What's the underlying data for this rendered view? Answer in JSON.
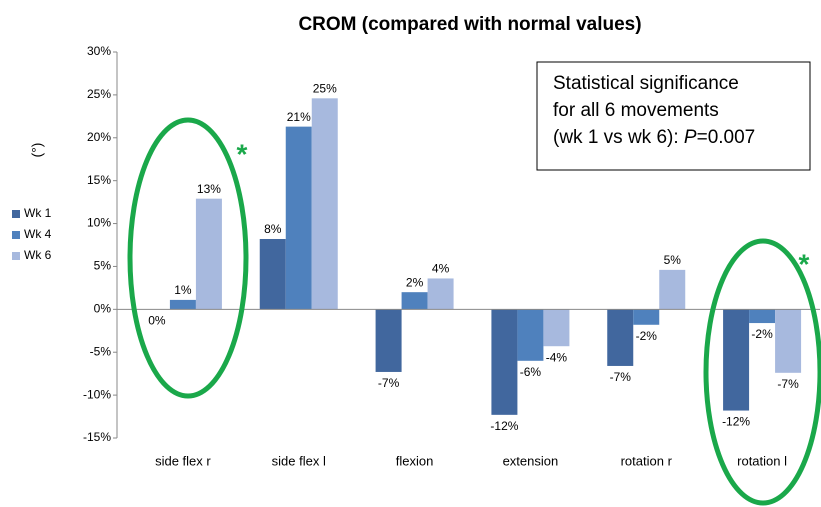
{
  "chart_data": {
    "type": "bar",
    "title": "CROM (compared with normal values)",
    "y_label": "(°)",
    "categories": [
      "side flex r",
      "side flex l",
      "flexion",
      "extension",
      "rotation r",
      "rotation l"
    ],
    "series": [
      {
        "name": "Wk 1",
        "color": "#41679e",
        "values": [
          0,
          8.2,
          -7.3,
          -12.3,
          -6.6,
          -11.8
        ],
        "value_labels": [
          "0%",
          "8%",
          "-7%",
          "-12%",
          "-7%",
          "-12%"
        ]
      },
      {
        "name": "Wk 4",
        "color": "#4f81bd",
        "values": [
          1.1,
          21.3,
          2.0,
          -6.0,
          -1.8,
          -1.6
        ],
        "value_labels": [
          "1%",
          "21%",
          "2%",
          "-6%",
          "-2%",
          "-2%"
        ]
      },
      {
        "name": "Wk 6",
        "color": "#a7b9de",
        "values": [
          12.9,
          24.6,
          3.6,
          -4.3,
          4.6,
          -7.4
        ],
        "value_labels": [
          "13%",
          "25%",
          "4%",
          "-4%",
          "5%",
          "-7%"
        ]
      }
    ],
    "ylim": [
      -15,
      30
    ],
    "yticks": [
      {
        "value": -15,
        "label": "-15%"
      },
      {
        "value": -10,
        "label": "-10%"
      },
      {
        "value": -5,
        "label": "-5%"
      },
      {
        "value": 0,
        "label": "0%"
      },
      {
        "value": 5,
        "label": "5%"
      },
      {
        "value": 10,
        "label": "10%"
      },
      {
        "value": 15,
        "label": "15%"
      },
      {
        "value": 20,
        "label": "20%"
      },
      {
        "value": 25,
        "label": "25%"
      },
      {
        "value": 30,
        "label": "30%"
      }
    ],
    "grid": false,
    "legend": "left",
    "annotation": {
      "lines": [
        "Statistical significance",
        "for all 6 movements"
      ],
      "last_line": [
        "(wk 1 vs wk 6): ",
        "P",
        "=0.007"
      ]
    },
    "markers": [
      "*",
      "*"
    ]
  }
}
